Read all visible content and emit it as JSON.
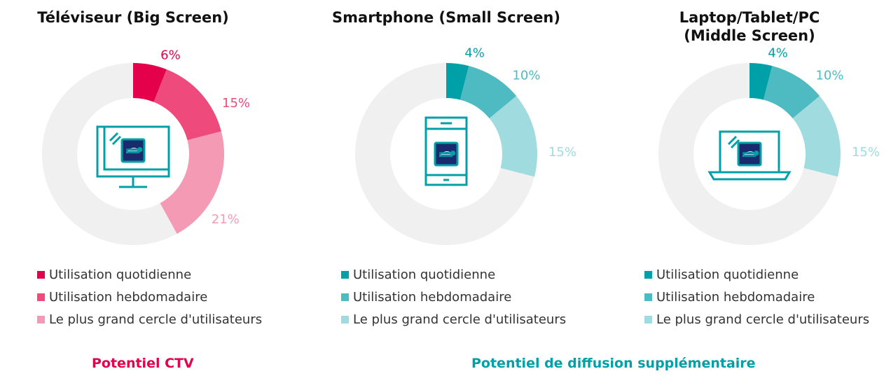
{
  "chart_data": [
    {
      "type": "pie",
      "title": [
        "Téléviseur (Big Screen)"
      ],
      "categories": [
        "Utilisation quotidienne",
        "Utilisation hebdomadaire",
        "Le plus grand cercle d'utilisateurs"
      ],
      "values": [
        6,
        15,
        21
      ],
      "value_labels": [
        "6%",
        "15%",
        "21%"
      ],
      "colors": [
        "#e4004b",
        "#ee4a7c",
        "#f49ab5"
      ],
      "background_color": "#f0f0f0",
      "icon": "tv-icon",
      "legend_position": "bottom"
    },
    {
      "type": "pie",
      "title": [
        "Smartphone (Small Screen)"
      ],
      "categories": [
        "Utilisation quotidienne",
        "Utilisation hebdomadaire",
        "Le plus grand cercle d'utilisateurs"
      ],
      "values": [
        4,
        10,
        15
      ],
      "value_labels": [
        "4%",
        "10%",
        "15%"
      ],
      "colors": [
        "#00a0a8",
        "#4dbbc1",
        "#a0dbe0"
      ],
      "background_color": "#f0f0f0",
      "icon": "smartphone-icon",
      "legend_position": "bottom"
    },
    {
      "type": "pie",
      "title": [
        "Laptop/Tablet/PC",
        "(Middle Screen)"
      ],
      "categories": [
        "Utilisation quotidienne",
        "Utilisation hebdomadaire",
        "Le plus grand cercle d'utilisateurs"
      ],
      "values": [
        4,
        10,
        15
      ],
      "value_labels": [
        "4%",
        "10%",
        "15%"
      ],
      "colors": [
        "#00a0a8",
        "#4dbbc1",
        "#a0dbe0"
      ],
      "background_color": "#f0f0f0",
      "icon": "laptop-icon",
      "legend_position": "bottom"
    }
  ],
  "footer": {
    "ctv_label": "Potentiel CTV",
    "ctv_color": "#e4004b",
    "diffusion_label": "Potentiel de diffusion supplémentaire",
    "diffusion_color": "#00a0a8"
  },
  "icon_color": "#00a0a8",
  "logo_color": "#1a2a6c"
}
